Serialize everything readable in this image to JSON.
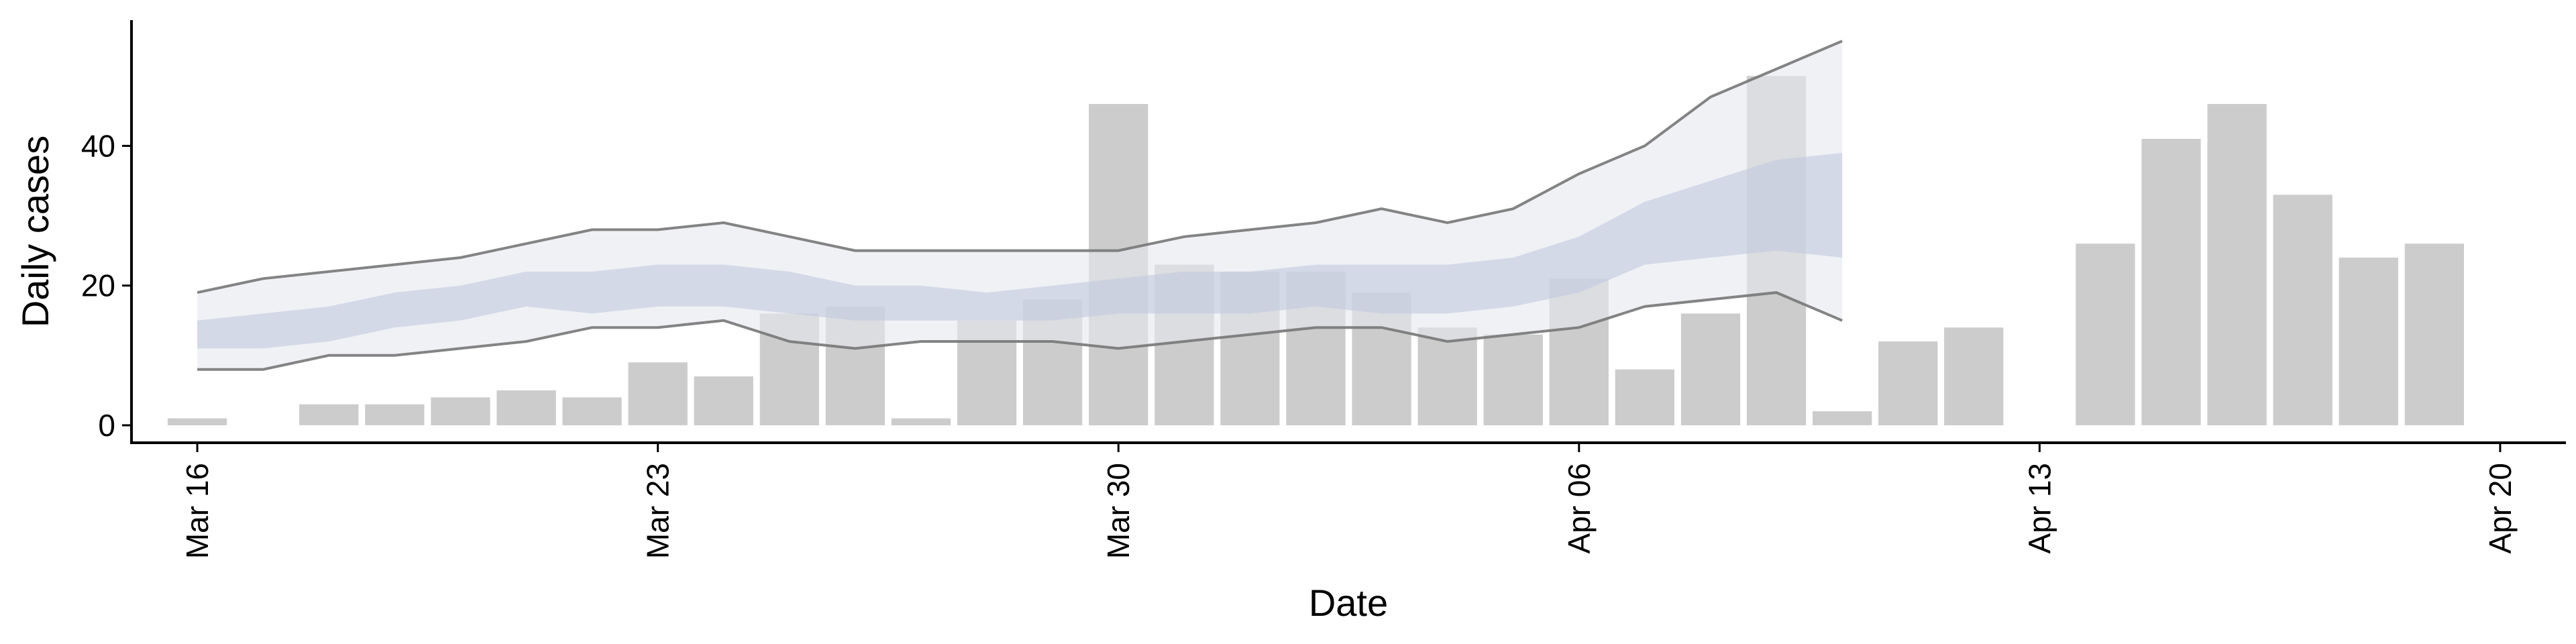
{
  "chart_data": {
    "type": "bar",
    "xlabel": "Date",
    "ylabel": "Daily cases",
    "x_axis": {
      "type": "date",
      "range": [
        "2020-03-15",
        "2020-04-21"
      ],
      "ticks": [
        {
          "date": "2020-03-16",
          "label": "Mar 16"
        },
        {
          "date": "2020-03-23",
          "label": "Mar 23"
        },
        {
          "date": "2020-03-30",
          "label": "Mar 30"
        },
        {
          "date": "2020-04-06",
          "label": "Apr 06"
        },
        {
          "date": "2020-04-13",
          "label": "Apr 13"
        },
        {
          "date": "2020-04-20",
          "label": "Apr 20"
        }
      ]
    },
    "y_axis": {
      "range": [
        -2.5,
        58
      ],
      "ticks": [
        0,
        20,
        40
      ]
    },
    "grid": false,
    "legend": "none",
    "bars": {
      "color": "#cccccc",
      "points": [
        {
          "date": "2020-03-16",
          "value": 1
        },
        {
          "date": "2020-03-18",
          "value": 3
        },
        {
          "date": "2020-03-19",
          "value": 3
        },
        {
          "date": "2020-03-20",
          "value": 4
        },
        {
          "date": "2020-03-21",
          "value": 5
        },
        {
          "date": "2020-03-22",
          "value": 4
        },
        {
          "date": "2020-03-23",
          "value": 9
        },
        {
          "date": "2020-03-24",
          "value": 7
        },
        {
          "date": "2020-03-25",
          "value": 16
        },
        {
          "date": "2020-03-26",
          "value": 17
        },
        {
          "date": "2020-03-27",
          "value": 1
        },
        {
          "date": "2020-03-28",
          "value": 15
        },
        {
          "date": "2020-03-29",
          "value": 18
        },
        {
          "date": "2020-03-30",
          "value": 46
        },
        {
          "date": "2020-03-31",
          "value": 23
        },
        {
          "date": "2020-04-01",
          "value": 22
        },
        {
          "date": "2020-04-02",
          "value": 22
        },
        {
          "date": "2020-04-03",
          "value": 19
        },
        {
          "date": "2020-04-04",
          "value": 14
        },
        {
          "date": "2020-04-05",
          "value": 13
        },
        {
          "date": "2020-04-06",
          "value": 21
        },
        {
          "date": "2020-04-07",
          "value": 8
        },
        {
          "date": "2020-04-08",
          "value": 16
        },
        {
          "date": "2020-04-09",
          "value": 50
        },
        {
          "date": "2020-04-10",
          "value": 2
        },
        {
          "date": "2020-04-11",
          "value": 12
        },
        {
          "date": "2020-04-12",
          "value": 14
        },
        {
          "date": "2020-04-14",
          "value": 26
        },
        {
          "date": "2020-04-15",
          "value": 41
        },
        {
          "date": "2020-04-16",
          "value": 46
        },
        {
          "date": "2020-04-17",
          "value": 33
        },
        {
          "date": "2020-04-18",
          "value": 24
        },
        {
          "date": "2020-04-19",
          "value": 26
        }
      ]
    },
    "bands": {
      "dates": [
        "2020-03-16",
        "2020-03-17",
        "2020-03-18",
        "2020-03-19",
        "2020-03-20",
        "2020-03-21",
        "2020-03-22",
        "2020-03-23",
        "2020-03-24",
        "2020-03-25",
        "2020-03-26",
        "2020-03-27",
        "2020-03-28",
        "2020-03-29",
        "2020-03-30",
        "2020-03-31",
        "2020-04-01",
        "2020-04-02",
        "2020-04-03",
        "2020-04-04",
        "2020-04-05",
        "2020-04-06",
        "2020-04-07",
        "2020-04-08",
        "2020-04-09",
        "2020-04-10"
      ],
      "outer_upper": [
        19,
        21,
        22,
        23,
        24,
        26,
        28,
        28,
        29,
        27,
        25,
        25,
        25,
        25,
        25,
        27,
        28,
        29,
        31,
        29,
        31,
        36,
        40,
        47,
        51,
        55
      ],
      "outer_lower": [
        8,
        8,
        10,
        10,
        11,
        12,
        14,
        14,
        15,
        12,
        11,
        12,
        12,
        12,
        11,
        12,
        13,
        14,
        14,
        12,
        13,
        14,
        17,
        18,
        19,
        15
      ],
      "inner_upper": [
        15,
        16,
        17,
        19,
        20,
        22,
        22,
        23,
        23,
        22,
        20,
        20,
        19,
        20,
        21,
        22,
        22,
        23,
        23,
        23,
        24,
        27,
        32,
        35,
        38,
        39
      ],
      "inner_lower": [
        11,
        11,
        12,
        14,
        15,
        17,
        16,
        17,
        17,
        16,
        15,
        15,
        15,
        15,
        16,
        16,
        16,
        17,
        16,
        16,
        17,
        19,
        23,
        24,
        25,
        24
      ],
      "outer_color": "#e4e7ef",
      "inner_color": "#c2c9dd",
      "line_color": "#777777"
    }
  }
}
